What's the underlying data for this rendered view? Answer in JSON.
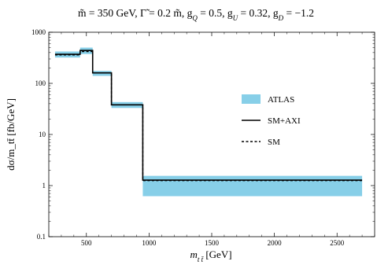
{
  "chart_data": {
    "type": "step",
    "title_parts": [
      {
        "t": "m̃ = 350 GeV, Γ̃ = 0.2 m̃, g"
      },
      {
        "t": "Q",
        "sub": true
      },
      {
        "t": " = 0.5, g"
      },
      {
        "t": "U",
        "sub": true
      },
      {
        "t": " = 0.32, g"
      },
      {
        "t": "D",
        "sub": true
      },
      {
        "t": " = −1.2"
      }
    ],
    "xlabel_parts": [
      {
        "t": "m"
      },
      {
        "t": "t t̄",
        "sub": true
      },
      {
        "t": " [GeV]"
      }
    ],
    "ylabel": "dσ/m_tt̄ [fb/GeV]",
    "xlim": [
      200,
      2800
    ],
    "ylim": [
      0.1,
      1000
    ],
    "yscale": "log",
    "x_ticks": [
      {
        "v": 500,
        "label": "500"
      },
      {
        "v": 1000,
        "label": "1000"
      },
      {
        "v": 1500,
        "label": "1500"
      },
      {
        "v": 2000,
        "label": "2000"
      },
      {
        "v": 2500,
        "label": "2500"
      }
    ],
    "y_ticks": [
      {
        "v": 0.1,
        "label": "0.1"
      },
      {
        "v": 1,
        "label": "1"
      },
      {
        "v": 10,
        "label": "10"
      },
      {
        "v": 100,
        "label": "100"
      },
      {
        "v": 1000,
        "label": "1000"
      }
    ],
    "bin_edges": [
      250,
      450,
      550,
      700,
      950,
      2700
    ],
    "series": [
      {
        "name": "ATLAS",
        "style": "band",
        "color": "#87cfe8",
        "lower": [
          320,
          375,
          140,
          33,
          0.62
        ],
        "upper": [
          420,
          500,
          175,
          43,
          1.55
        ]
      },
      {
        "name": "SM+AXI",
        "style": "solid",
        "color": "#000000",
        "values": [
          370,
          440,
          160,
          38,
          1.28
        ]
      },
      {
        "name": "SM",
        "style": "dashed",
        "color": "#000000",
        "values": [
          360,
          420,
          160,
          38,
          1.25
        ]
      }
    ],
    "legend_position": "right",
    "grid": false
  }
}
